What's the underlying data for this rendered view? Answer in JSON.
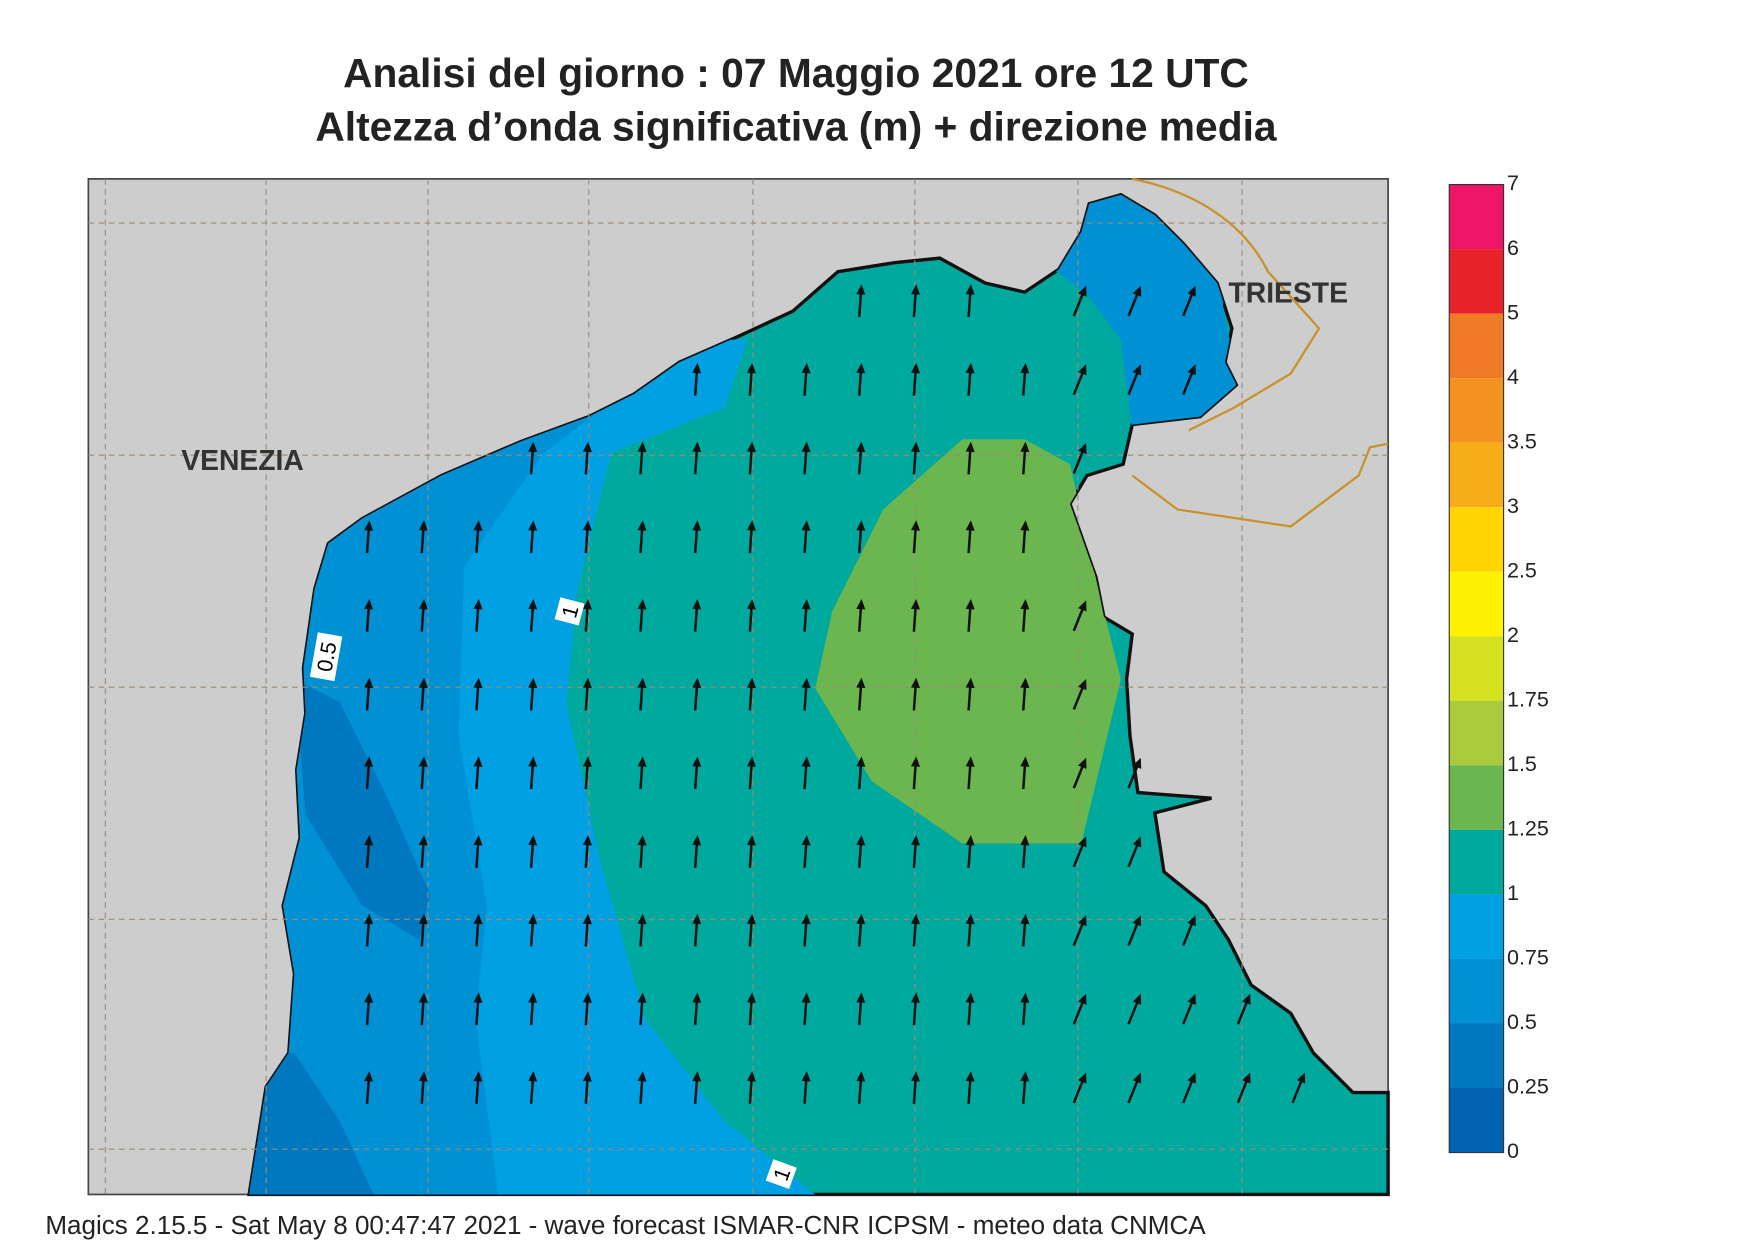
{
  "header": {
    "title": "Analisi del giorno :  07   Maggio  2021   ore 12 UTC",
    "subtitle": "Altezza d’onda significativa (m) + direzione media"
  },
  "map": {
    "cities": [
      "VENEZIA",
      "TRIESTE"
    ],
    "contour_labels": [
      "0.5",
      "1",
      "1"
    ]
  },
  "legend": {
    "labels": [
      "7",
      "6",
      "5",
      "4",
      "3.5",
      "3",
      "2.5",
      "2",
      "1.75",
      "1.5",
      "1.25",
      "1",
      "0.75",
      "0.5",
      "0.25",
      "0"
    ],
    "colors": [
      "#ee1569",
      "#e8222a",
      "#f07a25",
      "#f3921f",
      "#f6ad18",
      "#ffd400",
      "#fff200",
      "#d5e021",
      "#a9cb3b",
      "#6bb64f",
      "#00a99d",
      "#00a0e2",
      "#0090d4",
      "#0078c0",
      "#0062b0"
    ]
  },
  "footer": "Magics 2.15.5 - Sat May  8 00:47:47 2021 - wave forecast  ISMAR-CNR  ICPSM - meteo data   CNMCA"
}
